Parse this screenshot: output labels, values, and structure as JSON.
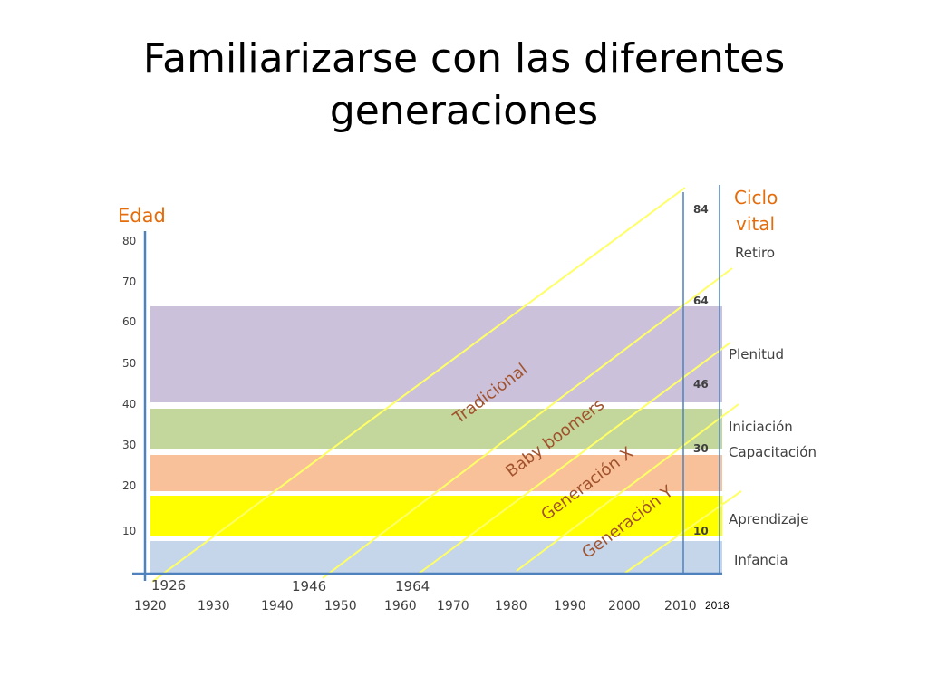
{
  "slide": {
    "title_line1": "Familiarizarse con las diferentes",
    "title_line2": "generaciones"
  },
  "diagram": {
    "y_axis_title": "Edad",
    "right_title_line1": "Ciclo",
    "right_title_line2": "vital",
    "age_ticks": [
      "80",
      "70",
      "60",
      "50",
      "40",
      "30",
      "20",
      "10"
    ],
    "year_ticks": [
      "1920",
      "1930",
      "1940",
      "1950",
      "1960",
      "1970",
      "1980",
      "1990",
      "2000",
      "2010"
    ],
    "current_year": "2018",
    "birth_years": [
      "1926",
      "1946",
      "1964"
    ],
    "current_ages": [
      "84",
      "64",
      "46",
      "30",
      "10"
    ],
    "bands": [
      {
        "label": "Infancia",
        "from_age": 0,
        "to_age": 8,
        "color": "#c5d5ea"
      },
      {
        "label": "Aprendizaje",
        "from_age": 8,
        "to_age": 18,
        "color": "#ffff00"
      },
      {
        "label": "Capacitación",
        "from_age": 18,
        "to_age": 28,
        "color": "#f9c19a"
      },
      {
        "label": "Iniciación",
        "from_age": 28,
        "to_age": 38,
        "color": "#c3d69b"
      },
      {
        "label": "Plenitud",
        "from_age": 38,
        "to_age": 62,
        "color": "#ccc1da"
      }
    ],
    "retiro_label": "Retiro",
    "generations": [
      "Tradicional",
      "Baby boomers",
      "Generación X",
      "Generación Y"
    ],
    "colors": {
      "axis": "#4f81bd",
      "orange_text": "#e46c0a",
      "generation_line": "#ffff66",
      "generation_text": "#a0522d",
      "body_text": "#404040"
    }
  }
}
